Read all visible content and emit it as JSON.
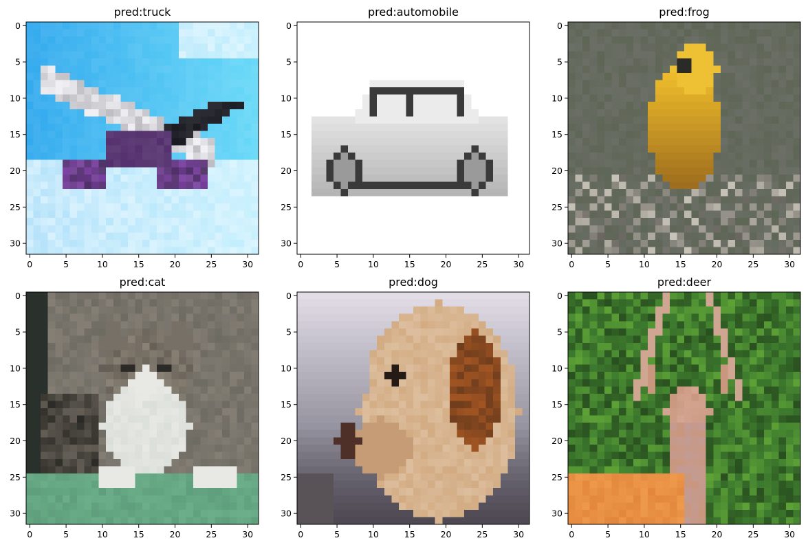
{
  "figure": {
    "panels": [
      {
        "title": "pred:truck",
        "depicts": "airplane",
        "palette": {
          "sky": "#33aaee",
          "cloud": "#e8f8ff",
          "body": "#f0f0f5",
          "accent": "#7a3fa0",
          "dark": "#1a1a22"
        }
      },
      {
        "title": "pred:automobile",
        "depicts": "automobile",
        "palette": {
          "bg": "#ffffff",
          "body": "#e2e2e2",
          "dark": "#3a3a3a",
          "mid": "#9a9a9a"
        }
      },
      {
        "title": "pred:frog",
        "depicts": "bird",
        "palette": {
          "bg": "#5e6656",
          "bird": "#e7b52a",
          "shadow": "#8a5a1a",
          "branch": "#c8c3b8",
          "dark": "#2a2a26"
        }
      },
      {
        "title": "pred:cat",
        "depicts": "cat",
        "palette": {
          "bg": "#6e6b62",
          "fur": "#8a8276",
          "white": "#e8e8e4",
          "grass": "#5f9f7d",
          "dark": "#2c2a26"
        }
      },
      {
        "title": "pred:dog",
        "depicts": "dog",
        "palette": {
          "bg": "#8e8c98",
          "fur": "#d2ab82",
          "ear": "#a25522",
          "dark": "#241a16",
          "light": "#f0e0d0"
        }
      },
      {
        "title": "pred:deer",
        "depicts": "deer",
        "palette": {
          "bg": "#3d7a2e",
          "leaf": "#6cb33a",
          "deer": "#c9977e",
          "orange": "#e2873c",
          "dark": "#203d18"
        }
      }
    ]
  },
  "chart_data": [
    {
      "type": "heatmap",
      "title": "pred:truck",
      "xlim": [
        -0.5,
        31.5
      ],
      "ylim": [
        31.5,
        -0.5
      ],
      "xticks": [
        0,
        5,
        10,
        15,
        20,
        25,
        30
      ],
      "yticks": [
        0,
        5,
        10,
        15,
        20,
        25,
        30
      ],
      "grid": false
    },
    {
      "type": "heatmap",
      "title": "pred:automobile",
      "xlim": [
        -0.5,
        31.5
      ],
      "ylim": [
        31.5,
        -0.5
      ],
      "xticks": [
        0,
        5,
        10,
        15,
        20,
        25,
        30
      ],
      "yticks": [
        0,
        5,
        10,
        15,
        20,
        25,
        30
      ],
      "grid": false
    },
    {
      "type": "heatmap",
      "title": "pred:frog",
      "xlim": [
        -0.5,
        31.5
      ],
      "ylim": [
        31.5,
        -0.5
      ],
      "xticks": [
        0,
        5,
        10,
        15,
        20,
        25,
        30
      ],
      "yticks": [
        0,
        5,
        10,
        15,
        20,
        25,
        30
      ],
      "grid": false
    },
    {
      "type": "heatmap",
      "title": "pred:cat",
      "xlim": [
        -0.5,
        31.5
      ],
      "ylim": [
        31.5,
        -0.5
      ],
      "xticks": [
        0,
        5,
        10,
        15,
        20,
        25,
        30
      ],
      "yticks": [
        0,
        5,
        10,
        15,
        20,
        25,
        30
      ],
      "grid": false
    },
    {
      "type": "heatmap",
      "title": "pred:dog",
      "xlim": [
        -0.5,
        31.5
      ],
      "ylim": [
        31.5,
        -0.5
      ],
      "xticks": [
        0,
        5,
        10,
        15,
        20,
        25,
        30
      ],
      "yticks": [
        0,
        5,
        10,
        15,
        20,
        25,
        30
      ],
      "grid": false
    },
    {
      "type": "heatmap",
      "title": "pred:deer",
      "xlim": [
        -0.5,
        31.5
      ],
      "ylim": [
        31.5,
        -0.5
      ],
      "xticks": [
        0,
        5,
        10,
        15,
        20,
        25,
        30
      ],
      "yticks": [
        0,
        5,
        10,
        15,
        20,
        25,
        30
      ],
      "grid": false
    }
  ]
}
